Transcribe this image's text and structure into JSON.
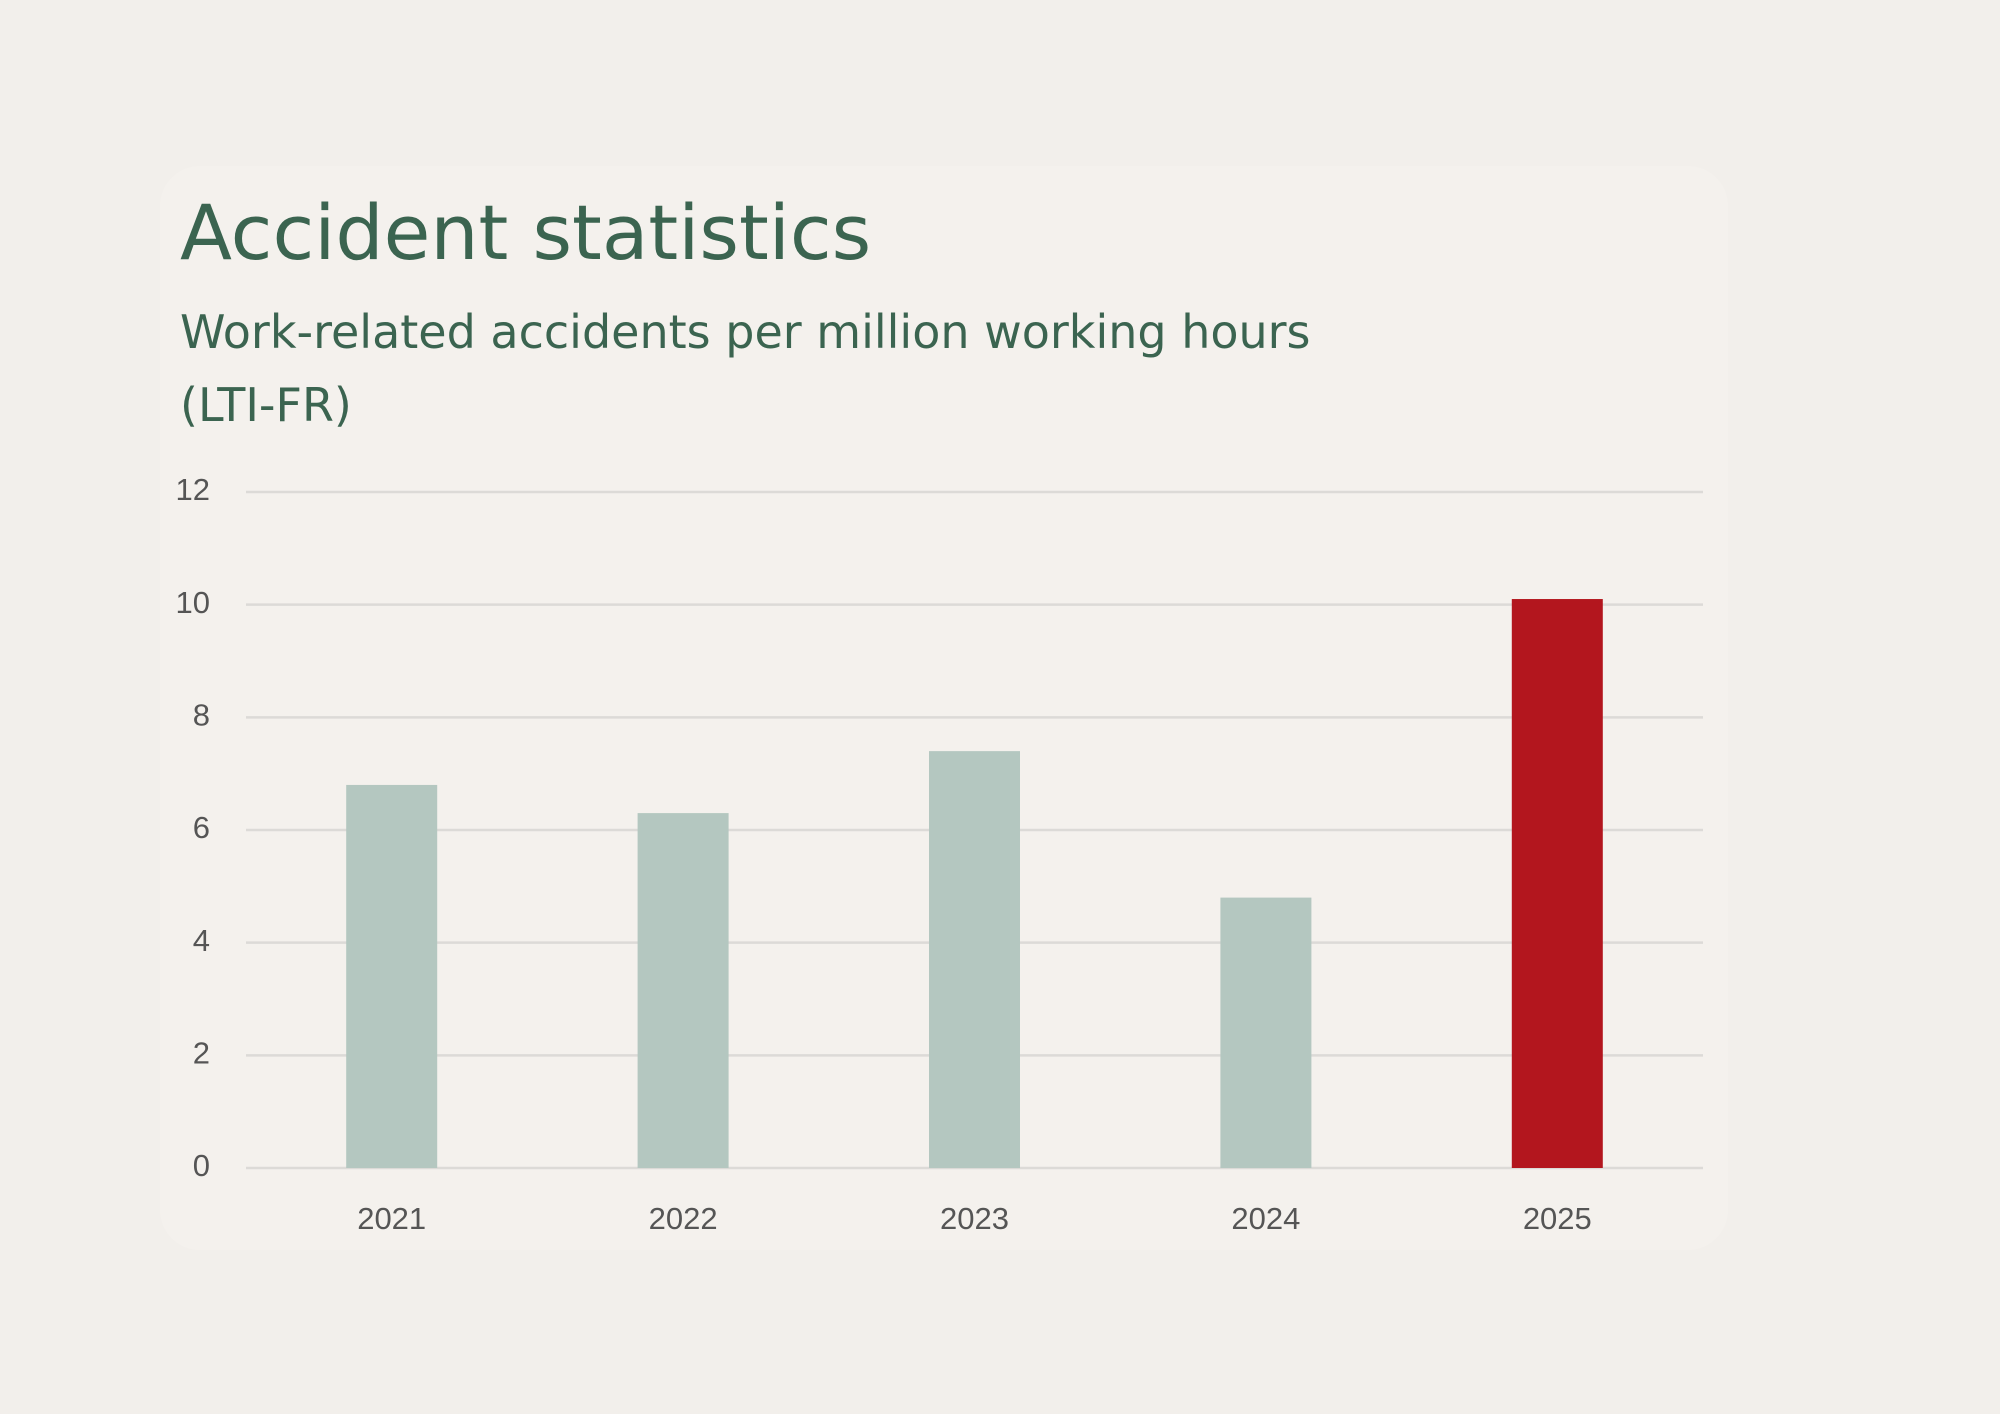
{
  "chart_data": {
    "type": "bar",
    "title": "Accident statistics",
    "subtitle": "Work-related accidents per million working hours (LTI-FR)",
    "categories": [
      "2021",
      "2022",
      "2023",
      "2024",
      "2025"
    ],
    "values": [
      6.8,
      6.3,
      7.4,
      4.8,
      10.1
    ],
    "colors": [
      "#b4c7c0",
      "#b4c7c0",
      "#b4c7c0",
      "#b4c7c0",
      "#b3161e"
    ],
    "ylim": [
      0,
      12
    ],
    "yticks": [
      0,
      2,
      4,
      6,
      8,
      10,
      12
    ],
    "grid": true
  }
}
